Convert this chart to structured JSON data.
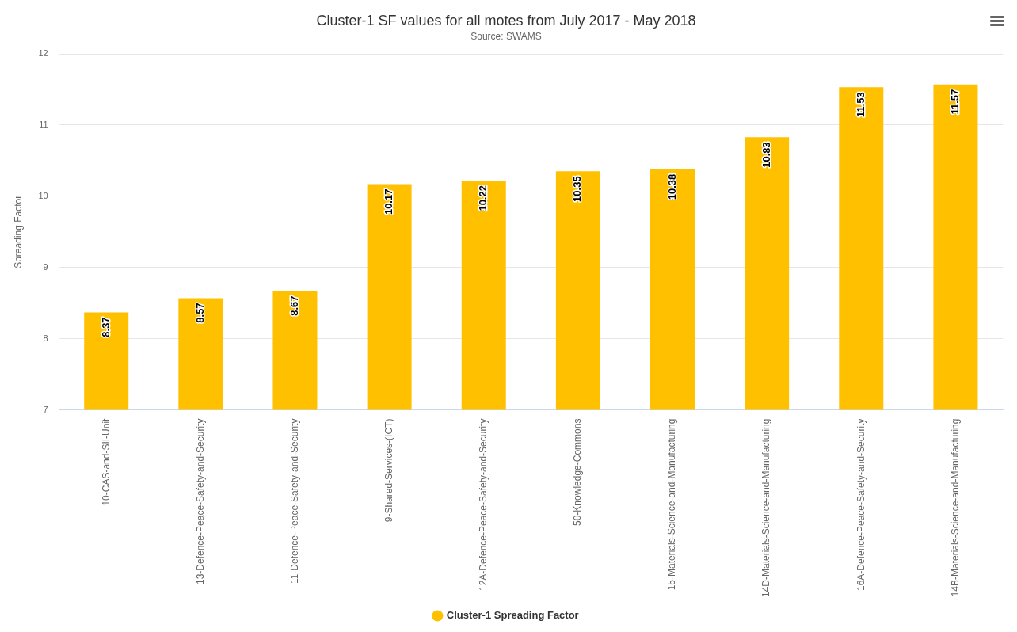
{
  "chart_data": {
    "type": "bar",
    "title": "Cluster-1 SF values for all motes from July 2017 - May 2018",
    "subtitle": "Source: SWAMS",
    "ylabel": "Spreading Factor",
    "categories": [
      "10-CAS-and-SII-Unit",
      "13-Defence-Peace-Safety-and-Security",
      "11-Defence-Peace-Safety-and-Security",
      "9-Shared-Services-(ICT)",
      "12A-Defence-Peace-Safety-and-Security",
      "50-Knowledge-Commons",
      "15-Materials-Science-and-Manufacturing",
      "14D-Materials-Science-and-Manufacturing",
      "16A-Defence-Peace-Safety-and-Security",
      "14B-Materials-Science-and-Manufacturing"
    ],
    "series": [
      {
        "name": "Cluster-1 Spreading Factor",
        "color": "#ffc000",
        "values": [
          8.37,
          8.57,
          8.67,
          10.17,
          10.22,
          10.35,
          10.38,
          10.83,
          11.53,
          11.57
        ]
      }
    ],
    "ylim": [
      7,
      12
    ],
    "yticks": [
      7,
      8,
      9,
      10,
      11,
      12
    ],
    "grid": "y",
    "legend": "bottom",
    "data_labels": true
  }
}
